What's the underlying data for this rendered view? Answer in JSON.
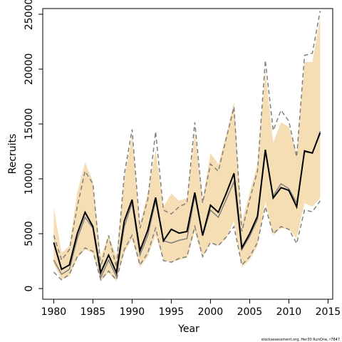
{
  "chart_data": {
    "type": "line",
    "xlabel": "Year",
    "ylabel": "Recruits",
    "footnote": "stockassessment.org, Her30 RunOne, r7847",
    "x": [
      1980,
      1981,
      1982,
      1983,
      1984,
      1985,
      1986,
      1987,
      1988,
      1989,
      1990,
      1991,
      1992,
      1993,
      1994,
      1995,
      1996,
      1997,
      1998,
      1999,
      2000,
      2001,
      2002,
      2003,
      2004,
      2005,
      2006,
      2007,
      2008,
      2009,
      2010,
      2011,
      2012,
      2013,
      2014
    ],
    "band": {
      "color": "#f5deb3",
      "upper": [
        7450,
        3250,
        3900,
        8750,
        11500,
        9750,
        2900,
        4850,
        2900,
        10050,
        13950,
        5850,
        8750,
        12650,
        7450,
        8650,
        8000,
        8250,
        14300,
        8100,
        12350,
        11350,
        13950,
        17000,
        6050,
        8750,
        11350,
        19800,
        13300,
        15150,
        14750,
        12350,
        20650,
        20650,
        24700
      ],
      "lower": [
        2250,
        850,
        1100,
        2750,
        3550,
        3250,
        650,
        1450,
        650,
        3250,
        4550,
        1950,
        2900,
        4850,
        2600,
        2400,
        2600,
        2800,
        5200,
        2800,
        4200,
        3900,
        4550,
        6150,
        1950,
        2600,
        3900,
        7900,
        4850,
        5500,
        5400,
        4550,
        7800,
        7450,
        8250
      ]
    },
    "series": [
      {
        "color": "#808080",
        "dash": true,
        "values": [
          4850,
          2600,
          3550,
          7450,
          10700,
          9550,
          1950,
          4850,
          1950,
          10400,
          14500,
          5500,
          8100,
          14300,
          7150,
          6800,
          7450,
          7800,
          15150,
          7800,
          11350,
          10700,
          13650,
          16550,
          5200,
          8100,
          10700,
          20800,
          14400,
          16250,
          15250,
          12000,
          21250,
          21450,
          25300
        ]
      },
      {
        "color": "#808080",
        "dash": true,
        "values": [
          1500,
          800,
          1300,
          2900,
          3700,
          3400,
          800,
          1600,
          800,
          3550,
          4850,
          2150,
          3250,
          5500,
          2550,
          2400,
          2750,
          2900,
          5650,
          2900,
          4200,
          3900,
          4700,
          5650,
          2150,
          2900,
          4200,
          7450,
          5000,
          5650,
          5400,
          4100,
          7150,
          7000,
          8000
        ]
      },
      {
        "color": "#808080",
        "dash": false,
        "values": [
          2600,
          1300,
          1750,
          4550,
          6500,
          5500,
          1000,
          2600,
          1100,
          5650,
          7800,
          3050,
          4850,
          8000,
          4350,
          4150,
          4400,
          4550,
          8450,
          4800,
          7150,
          6500,
          8100,
          9750,
          3550,
          4750,
          6300,
          12450,
          8450,
          9550,
          9100,
          7800,
          12450,
          12350,
          14350
        ]
      },
      {
        "color": "#000000",
        "dash": false,
        "values": [
          4200,
          1750,
          2150,
          5000,
          6950,
          5650,
          1450,
          3050,
          1450,
          6150,
          8100,
          3450,
          5300,
          8300,
          4350,
          5400,
          5050,
          5200,
          8750,
          4850,
          7600,
          6950,
          8650,
          10500,
          3700,
          5000,
          6600,
          12650,
          8250,
          9200,
          8950,
          7450,
          12550,
          12350,
          14200
        ]
      }
    ],
    "xlim": [
      1978.6,
      2015.6
    ],
    "ylim": [
      -974,
      25519
    ],
    "xticks": [
      1980,
      1985,
      1990,
      1995,
      2000,
      2005,
      2010,
      2015
    ],
    "yticks": [
      0,
      5000,
      10000,
      15000,
      20000,
      25000
    ]
  }
}
